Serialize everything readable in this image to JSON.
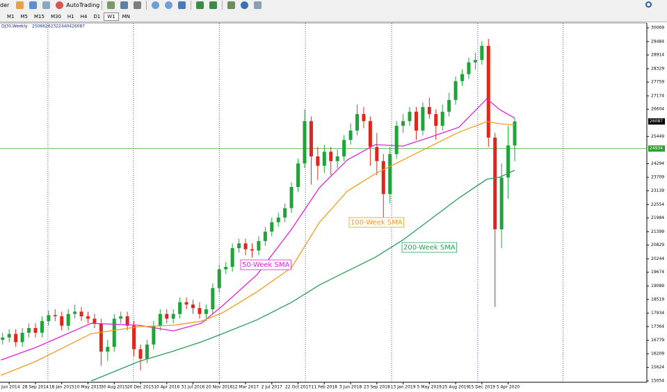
{
  "toolbar": {
    "order_label": "der",
    "autotrading": "AutoTrading",
    "timeframes": [
      "M1",
      "M5",
      "M15",
      "M30",
      "H1",
      "H4",
      "D1",
      "W1",
      "MN"
    ],
    "active_timeframe": "W1"
  },
  "chart_data": {
    "type": "candlestick",
    "title": "DJ30,Weekly",
    "x": [
      -20,
      -16,
      -12,
      -8,
      -4,
      0,
      4,
      8,
      12,
      16,
      20,
      24,
      28,
      32,
      36,
      40,
      44,
      48,
      52,
      56,
      60,
      64,
      68,
      72,
      76,
      80,
      84,
      88,
      92,
      96,
      100,
      104,
      108,
      112,
      116,
      120,
      124,
      128,
      132,
      136,
      140,
      144,
      148,
      152,
      156,
      160,
      164,
      168,
      172,
      176,
      180,
      184,
      188,
      192,
      196,
      200,
      204,
      208,
      212,
      216,
      220,
      224,
      228,
      232,
      236,
      240,
      244,
      248,
      252,
      256,
      260,
      264,
      268,
      272,
      276,
      280,
      284,
      288,
      292
    ],
    "open": [
      16800,
      16900,
      17050,
      16700,
      17100,
      17300,
      17100,
      17600,
      17850,
      17800,
      17400,
      17900,
      18000,
      17800,
      17700,
      17500,
      16300,
      16500,
      17700,
      17800,
      17400,
      16400,
      16000,
      16600,
      17400,
      17900,
      17700,
      17900,
      18400,
      18300,
      18150,
      17900,
      18100,
      19000,
      19800,
      19900,
      20700,
      20900,
      20650,
      20600,
      21000,
      21400,
      21800,
      22000,
      22400,
      23300,
      24300,
      26100,
      24600,
      24200,
      24800,
      24400,
      24600,
      25300,
      25700,
      26400,
      26100,
      25000,
      24400,
      23000,
      24700,
      25900,
      26100,
      26500,
      25700,
      26700,
      26400,
      25900,
      26500,
      27000,
      27800,
      28100,
      28600,
      28700,
      29300,
      25400,
      21500,
      23700,
      25066
    ],
    "high": [
      17100,
      17250,
      17250,
      17300,
      17500,
      17500,
      17800,
      18050,
      18100,
      18000,
      18100,
      18300,
      18200,
      18000,
      17900,
      17700,
      16800,
      17900,
      18000,
      18000,
      17600,
      16600,
      16800,
      17600,
      18100,
      18100,
      18100,
      18600,
      18600,
      18500,
      18400,
      18300,
      19200,
      20000,
      20100,
      20900,
      21100,
      21100,
      20900,
      21200,
      21600,
      22000,
      22200,
      22600,
      23500,
      24500,
      26600,
      26300,
      25000,
      25100,
      25000,
      24900,
      25500,
      26000,
      26800,
      26700,
      26300,
      25600,
      24700,
      25000,
      26100,
      26400,
      26700,
      26700,
      26900,
      27100,
      26600,
      26800,
      27300,
      28000,
      28300,
      28800,
      29000,
      29500,
      29600,
      25600,
      24300,
      25900,
      26232
    ],
    "low": [
      16600,
      16700,
      16500,
      16500,
      16900,
      16900,
      16900,
      17400,
      17600,
      17200,
      17200,
      17700,
      17600,
      17500,
      17300,
      15700,
      15900,
      16300,
      17500,
      17200,
      16100,
      15500,
      15800,
      16400,
      17200,
      17500,
      17500,
      17700,
      18100,
      17900,
      17700,
      17600,
      17900,
      18800,
      19600,
      19700,
      20500,
      20400,
      20300,
      20400,
      20800,
      21200,
      21600,
      21800,
      22200,
      23100,
      24100,
      23400,
      23600,
      23900,
      23800,
      24100,
      24400,
      25100,
      25500,
      25800,
      24200,
      23800,
      21800,
      22600,
      24500,
      25600,
      25900,
      25300,
      25500,
      26200,
      25300,
      25700,
      26300,
      26800,
      27600,
      27900,
      28300,
      28500,
      25000,
      18200,
      20700,
      22800,
      24404
    ],
    "close": [
      16900,
      17050,
      16700,
      17100,
      17300,
      17100,
      17600,
      17850,
      17800,
      17400,
      17900,
      18000,
      17800,
      17700,
      17500,
      16300,
      16500,
      17700,
      17800,
      17400,
      16400,
      16000,
      16600,
      17400,
      17900,
      17700,
      17900,
      18400,
      18300,
      18150,
      17900,
      18100,
      19000,
      19800,
      19900,
      20700,
      20900,
      20650,
      20600,
      21000,
      21400,
      21800,
      22000,
      22400,
      23300,
      24300,
      26100,
      24600,
      24200,
      24800,
      24400,
      24600,
      25300,
      25700,
      26400,
      26100,
      25000,
      24400,
      23000,
      24700,
      25900,
      26100,
      26500,
      25700,
      26700,
      26400,
      25900,
      26500,
      27000,
      27800,
      28100,
      28600,
      28700,
      29300,
      25400,
      21500,
      23700,
      25066,
      26087
    ],
    "up_color": "#1fa33a",
    "down_color": "#e0261b",
    "series": [
      {
        "name": "50-Week SMA",
        "color": "#e021d8",
        "x": [
          -21,
          0,
          34,
          63,
          84,
          101,
          114,
          135,
          156,
          173,
          190,
          207,
          224,
          241,
          258,
          275,
          283,
          292
        ],
        "values": [
          15940,
          16470,
          17500,
          17420,
          17180,
          17500,
          18250,
          19570,
          21500,
          23270,
          24450,
          25100,
          25040,
          25430,
          25840,
          27050,
          26580,
          26230
        ]
      },
      {
        "name": "100-Week SMA",
        "color": "#f39a1e",
        "x": [
          -21,
          0,
          34,
          63,
          84,
          101,
          114,
          135,
          156,
          173,
          190,
          207,
          224,
          241,
          258,
          275,
          283,
          292
        ],
        "values": [
          15290,
          15880,
          17060,
          17360,
          17420,
          17590,
          17950,
          18840,
          19870,
          21790,
          23120,
          23860,
          24450,
          25040,
          25630,
          26080,
          25990,
          25930
        ]
      },
      {
        "name": "200-Week SMA",
        "color": "#2a9d55",
        "x": [
          34,
          63,
          84,
          101,
          114,
          135,
          156,
          173,
          190,
          207,
          224,
          241,
          258,
          275,
          283,
          292
        ],
        "values": [
          15050,
          15880,
          16320,
          16710,
          17060,
          17650,
          18390,
          19130,
          19720,
          20310,
          21050,
          21940,
          22830,
          23630,
          23720,
          24010
        ]
      }
    ],
    "hline": {
      "value": 24934,
      "color": "#2ca02c"
    },
    "xlim": [
      -21.6,
      372.5
    ],
    "ylim": [
      14995,
      30276
    ],
    "yticks": [
      30069,
      29484,
      28914,
      28329,
      27759,
      27174,
      26604,
      25449,
      24294,
      23709,
      23139,
      22554,
      21984,
      21399,
      20829,
      20244,
      19674,
      19089,
      18519,
      17934,
      17364,
      16779,
      16209,
      15624,
      15054
    ],
    "xticks": [
      {
        "value": -16,
        "label": "Jun 2014"
      },
      {
        "value": 0,
        "label": "28 Sep 2014"
      },
      {
        "value": 16,
        "label": "18 Jan 2015"
      },
      {
        "value": 32,
        "label": "10 May 2015"
      },
      {
        "value": 48,
        "label": "30 Aug 2015"
      },
      {
        "value": 64,
        "label": "20 Dec 2015"
      },
      {
        "value": 80,
        "label": "10 Apr 2016"
      },
      {
        "value": 96,
        "label": "31 Jul 2016"
      },
      {
        "value": 112,
        "label": "20 Nov 2016"
      },
      {
        "value": 128,
        "label": "12 Mar 2017"
      },
      {
        "value": 144,
        "label": "2 Jul 2017"
      },
      {
        "value": 160,
        "label": "22 Oct 2017"
      },
      {
        "value": 176,
        "label": "11 Feb 2018"
      },
      {
        "value": 192,
        "label": "3 Jun 2018"
      },
      {
        "value": 208,
        "label": "23 Sep 2018"
      },
      {
        "value": 224,
        "label": "13 Jan 2019"
      },
      {
        "value": 240,
        "label": "5 May 2019"
      },
      {
        "value": 256,
        "label": "25 Aug 2019"
      },
      {
        "value": 272,
        "label": "15 Dec 2019"
      },
      {
        "value": 288,
        "label": "5 Apr 2020"
      }
    ],
    "xgrid": [
      7.6,
      59.7,
      112,
      164.5,
      217,
      269.5,
      321.5
    ]
  }
}
